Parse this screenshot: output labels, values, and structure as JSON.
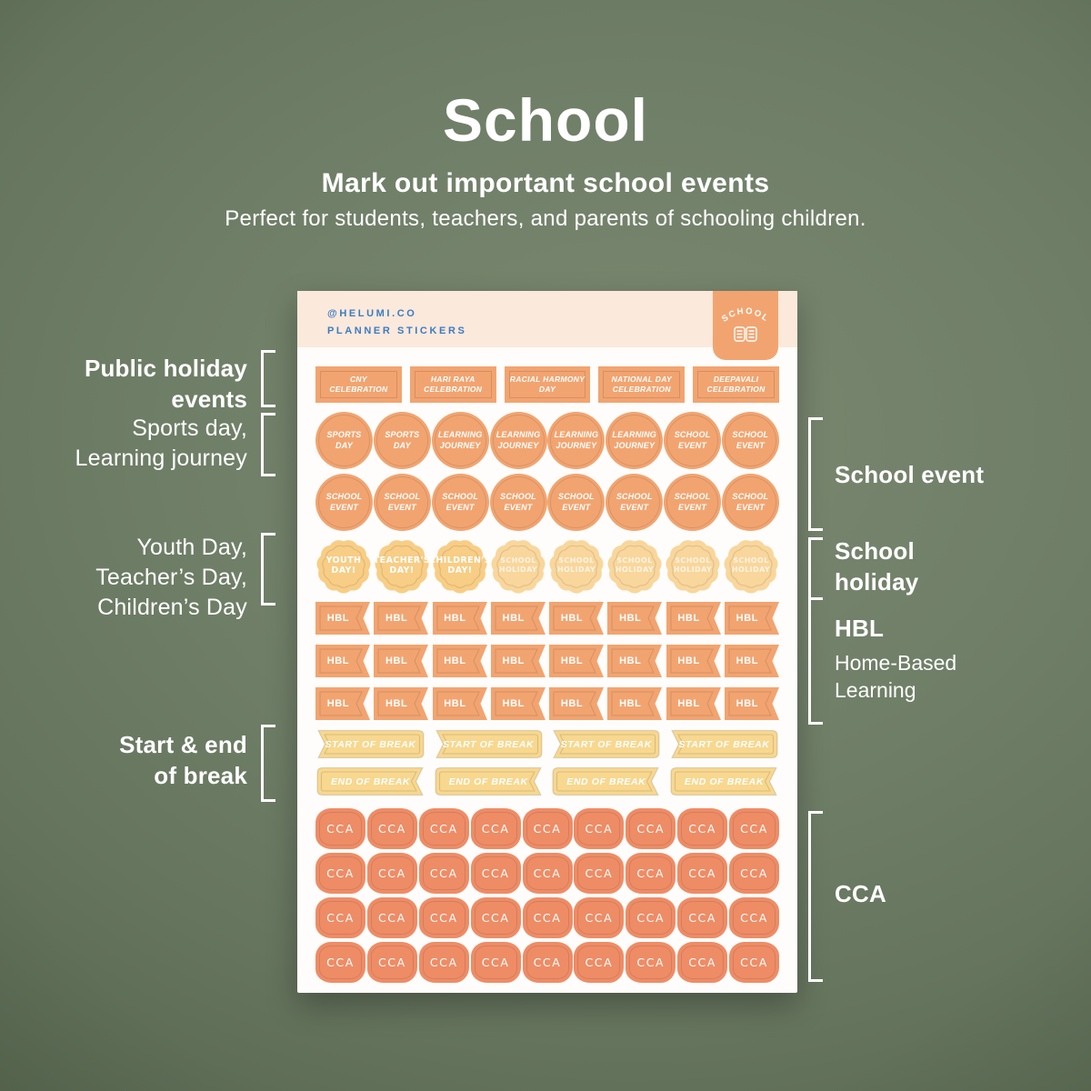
{
  "hero": {
    "title": "School",
    "subtitle": "Mark out important school events",
    "description": "Perfect for students, teachers, and parents of schooling children."
  },
  "sheet": {
    "brand": {
      "line1": "@HELUMI.CO",
      "line2": "PLANNER STICKERS"
    },
    "tab": {
      "label": "SCHOOL",
      "icon": "open-book-icon"
    },
    "rows": [
      {
        "type": "rect",
        "items": [
          "CNY\nCELEBRATION",
          "HARI RAYA\nCELEBRATION",
          "RACIAL HARMONY\nDAY",
          "NATIONAL DAY\nCELEBRATION",
          "DEEPAVALI\nCELEBRATION"
        ]
      },
      {
        "type": "circle",
        "items": [
          "SPORTS\nDAY",
          "SPORTS\nDAY",
          "LEARNING\nJOURNEY",
          "LEARNING\nJOURNEY",
          "LEARNING\nJOURNEY",
          "LEARNING\nJOURNEY",
          "SCHOOL\nEVENT",
          "SCHOOL\nEVENT"
        ]
      },
      {
        "type": "circle",
        "items": [
          "SCHOOL\nEVENT",
          "SCHOOL\nEVENT",
          "SCHOOL\nEVENT",
          "SCHOOL\nEVENT",
          "SCHOOL\nEVENT",
          "SCHOOL\nEVENT",
          "SCHOOL\nEVENT",
          "SCHOOL\nEVENT"
        ]
      },
      {
        "type": "scallop",
        "items": [
          "YOUTH\nDAY!",
          "TEACHER'S\nDAY!",
          "CHILDREN'S\nDAY!",
          "SCHOOL\nHOLIDAY",
          "SCHOOL\nHOLIDAY",
          "SCHOOL\nHOLIDAY",
          "SCHOOL\nHOLIDAY",
          "SCHOOL\nHOLIDAY"
        ]
      },
      {
        "type": "flag",
        "items": [
          "HBL",
          "HBL",
          "HBL",
          "HBL",
          "HBL",
          "HBL",
          "HBL",
          "HBL"
        ]
      },
      {
        "type": "flag",
        "items": [
          "HBL",
          "HBL",
          "HBL",
          "HBL",
          "HBL",
          "HBL",
          "HBL",
          "HBL"
        ]
      },
      {
        "type": "flag",
        "items": [
          "HBL",
          "HBL",
          "HBL",
          "HBL",
          "HBL",
          "HBL",
          "HBL",
          "HBL"
        ]
      },
      {
        "type": "notch-left",
        "items": [
          "START OF BREAK",
          "START OF BREAK",
          "START OF BREAK",
          "START OF BREAK"
        ]
      },
      {
        "type": "notch-right",
        "items": [
          "END OF BREAK",
          "END OF BREAK",
          "END OF BREAK",
          "END OF BREAK"
        ]
      },
      {
        "type": "blob",
        "items": [
          "CCA",
          "CCA",
          "CCA",
          "CCA",
          "CCA",
          "CCA",
          "CCA",
          "CCA",
          "CCA"
        ]
      },
      {
        "type": "blob",
        "items": [
          "CCA",
          "CCA",
          "CCA",
          "CCA",
          "CCA",
          "CCA",
          "CCA",
          "CCA",
          "CCA"
        ]
      },
      {
        "type": "blob",
        "items": [
          "CCA",
          "CCA",
          "CCA",
          "CCA",
          "CCA",
          "CCA",
          "CCA",
          "CCA",
          "CCA"
        ]
      },
      {
        "type": "blob",
        "items": [
          "CCA",
          "CCA",
          "CCA",
          "CCA",
          "CCA",
          "CCA",
          "CCA",
          "CCA",
          "CCA"
        ]
      }
    ]
  },
  "annotations": {
    "left": [
      {
        "lines": [
          "Public holiday",
          "events"
        ],
        "bold": true
      },
      {
        "lines": [
          "Sports day,",
          "Learning journey"
        ],
        "bold": false
      },
      {
        "lines": [
          "Youth Day,",
          "Teacher’s Day,",
          "Children’s Day"
        ],
        "bold": false
      },
      {
        "lines": [
          "Start & end",
          "of break"
        ],
        "bold": true
      }
    ],
    "right": [
      {
        "title_lines": [
          "School event"
        ],
        "subtitle_lines": []
      },
      {
        "title_lines": [
          "School",
          "holiday"
        ],
        "subtitle_lines": []
      },
      {
        "title_lines": [
          "HBL"
        ],
        "subtitle_lines": [
          "Home-Based",
          "Learning"
        ]
      },
      {
        "title_lines": [
          "CCA"
        ],
        "subtitle_lines": []
      }
    ]
  },
  "colors": {
    "background_green": "#6e7d66",
    "sheet_white": "#fffdfb",
    "header_cream": "#fbe9dc",
    "brand_blue": "#3b7cc1",
    "sticker_orange": "#f2a470",
    "sticker_yellow": "#f8cd85",
    "sticker_yellow_light": "#f9d69b",
    "break_yellow": "#f8d78f",
    "cca_salmon": "#ee8c66",
    "annotation_white": "#ffffff"
  }
}
